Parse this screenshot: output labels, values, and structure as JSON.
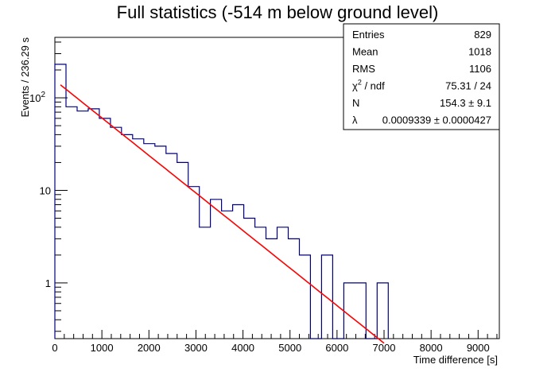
{
  "chart_data": {
    "type": "histogram",
    "title": "Full statistics (-514 m below ground level)",
    "xlabel": "Time difference [s]",
    "ylabel": "Events / 236.29 s",
    "xlim": [
      0,
      9451.6
    ],
    "ylim": [
      0.25,
      450
    ],
    "y_scale": "log",
    "x_ticks": [
      0,
      1000,
      2000,
      3000,
      4000,
      5000,
      6000,
      7000,
      8000,
      9000
    ],
    "y_ticks": [
      {
        "value": 1,
        "label": "1"
      },
      {
        "value": 10,
        "label": "10"
      },
      {
        "value": 100,
        "label": "10",
        "exponent": "2"
      }
    ],
    "bin_width": 236.29,
    "bin_edges": [
      0,
      236.29,
      472.58,
      708.87,
      945.16,
      1181.45,
      1417.74,
      1654.03,
      1890.32,
      2126.61,
      2362.9,
      2599.19,
      2835.48,
      3071.77,
      3308.06,
      3544.35,
      3780.64,
      4016.93,
      4253.22,
      4489.51,
      4725.8,
      4962.09,
      5198.38,
      5434.67,
      5670.96,
      5907.25,
      6143.54,
      6379.83,
      6616.12,
      6852.41,
      7088.7
    ],
    "counts": [
      230,
      80,
      72,
      76,
      60,
      48,
      40,
      36,
      32,
      30,
      25,
      20,
      11,
      4,
      8,
      6,
      7,
      5,
      4,
      3,
      4,
      3,
      2,
      0,
      2,
      0,
      1,
      1,
      0,
      1
    ],
    "fit": {
      "name": "exponential",
      "N": 154.3,
      "lambda": 0.0009339,
      "color": "#ff0000",
      "x_range": [
        118,
        7000
      ]
    },
    "histogram_color": "#00007f",
    "stats_box": {
      "rows": [
        {
          "label": "Entries",
          "value": "829"
        },
        {
          "label": "Mean",
          "value": "1018"
        },
        {
          "label": "RMS",
          "value": "1106"
        },
        {
          "label": "χ² / ndf",
          "label_main": "χ",
          "label_sup": "2",
          "label_rest": " / ndf",
          "value": "75.31 / 24"
        },
        {
          "label": "N",
          "value": "154.3 ± 9.1"
        },
        {
          "label": "λ",
          "value": "0.0009339 ± 0.0000427"
        }
      ],
      "placement": "top-right"
    }
  }
}
